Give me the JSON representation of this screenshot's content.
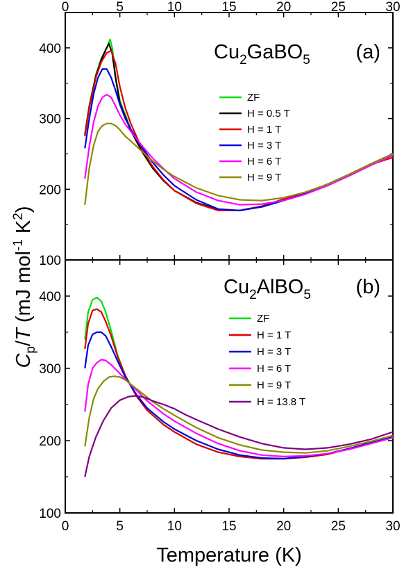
{
  "chart_data": [
    {
      "type": "line",
      "panel": "top",
      "title": "Cu2GaBO5 (a)",
      "title_parts": {
        "base": "Cu",
        "sub1": "2",
        "mid": "GaBO",
        "sub2": "5",
        "tag": "(a)"
      },
      "xlabel": "Temperature (K)",
      "ylabel": "Cp/T (mJ mol-1 K2)",
      "xlim": [
        0,
        30
      ],
      "ylim": [
        100,
        450
      ],
      "xticks": [
        0,
        5,
        10,
        15,
        20,
        25,
        30
      ],
      "yticks": [
        100,
        200,
        300,
        400
      ],
      "xtick_labels": [
        "0",
        "5",
        "10",
        "15",
        "20",
        "25",
        "30"
      ],
      "ytick_labels": [
        "100",
        "200",
        "300",
        "400"
      ],
      "legend_position": "right",
      "series": [
        {
          "name": "ZF",
          "color": "#00e000",
          "x": [
            1.8,
            2.2,
            2.8,
            3.3,
            3.8,
            4.1,
            4.3,
            4.6,
            5.0,
            6,
            7,
            8,
            9,
            10,
            12,
            14,
            16,
            18,
            20,
            22,
            24,
            26,
            28,
            30
          ],
          "y": [
            278,
            318,
            362,
            385,
            400,
            412,
            400,
            360,
            325,
            285,
            255,
            230,
            212,
            198,
            181,
            171,
            170,
            176,
            186,
            195,
            207,
            221,
            236,
            250
          ]
        },
        {
          "name": "H = 0.5 T",
          "color": "#000000",
          "x": [
            1.8,
            2.2,
            2.8,
            3.3,
            3.7,
            4.0,
            4.3,
            4.6,
            5.0,
            6,
            7,
            8,
            9,
            10,
            12,
            14,
            16,
            18,
            20,
            22,
            24,
            26,
            28,
            30
          ],
          "y": [
            277,
            317,
            360,
            383,
            397,
            406,
            392,
            358,
            322,
            283,
            254,
            230,
            212,
            198,
            181,
            171,
            170,
            176,
            186,
            195,
            207,
            221,
            236,
            250
          ]
        },
        {
          "name": "H = 1 T",
          "color": "#e00000",
          "x": [
            1.8,
            2.2,
            2.8,
            3.3,
            3.8,
            4.2,
            4.6,
            5.0,
            5.5,
            6,
            7,
            8,
            9,
            10,
            12,
            14,
            16,
            18,
            20,
            22,
            24,
            26,
            28,
            30
          ],
          "y": [
            275,
            315,
            358,
            380,
            393,
            396,
            378,
            345,
            315,
            293,
            258,
            232,
            213,
            198,
            180,
            170,
            170,
            176,
            186,
            195,
            207,
            220,
            235,
            245
          ]
        },
        {
          "name": "H = 3 T",
          "color": "#0000e0",
          "x": [
            1.8,
            2.2,
            2.6,
            3.0,
            3.4,
            3.8,
            4.2,
            4.6,
            5.0,
            5.5,
            6,
            7,
            8,
            9,
            10,
            12,
            14,
            16,
            18,
            20,
            22,
            24,
            26,
            28,
            30
          ],
          "y": [
            258,
            300,
            335,
            358,
            370,
            370,
            358,
            340,
            320,
            300,
            285,
            260,
            238,
            220,
            205,
            185,
            172,
            170,
            175,
            184,
            194,
            206,
            220,
            235,
            248
          ]
        },
        {
          "name": "H = 6 T",
          "color": "#ff00ff",
          "x": [
            1.8,
            2.2,
            2.6,
            3.0,
            3.4,
            3.8,
            4.2,
            4.6,
            5.0,
            5.5,
            6,
            7,
            8,
            9,
            10,
            12,
            14,
            16,
            18,
            20,
            22,
            24,
            26,
            28,
            30
          ],
          "y": [
            215,
            260,
            295,
            318,
            330,
            334,
            330,
            318,
            305,
            292,
            282,
            262,
            244,
            229,
            215,
            196,
            184,
            178,
            179,
            184,
            193,
            205,
            219,
            234,
            248
          ]
        },
        {
          "name": "H = 9 T",
          "color": "#8b8b00",
          "x": [
            1.8,
            2.2,
            2.6,
            3.0,
            3.4,
            3.8,
            4.2,
            4.6,
            5.0,
            5.5,
            6,
            7,
            8,
            9,
            10,
            12,
            14,
            16,
            18,
            20,
            22,
            24,
            26,
            28,
            30
          ],
          "y": [
            178,
            230,
            262,
            282,
            290,
            293,
            293,
            290,
            284,
            275,
            268,
            254,
            240,
            228,
            218,
            202,
            191,
            185,
            184,
            188,
            196,
            207,
            221,
            236,
            250
          ]
        }
      ]
    },
    {
      "type": "line",
      "panel": "bottom",
      "title": "Cu2AlBO5 (b)",
      "title_parts": {
        "base": "Cu",
        "sub1": "2",
        "mid": "AlBO",
        "sub2": "5",
        "tag": "(b)"
      },
      "xlabel": "Temperature (K)",
      "ylabel": "Cp/T (mJ mol-1 K2)",
      "xlim": [
        0,
        30
      ],
      "ylim": [
        100,
        450
      ],
      "xticks": [
        0,
        5,
        10,
        15,
        20,
        25,
        30
      ],
      "yticks": [
        100,
        200,
        300,
        400
      ],
      "xtick_labels": [
        "0",
        "5",
        "10",
        "15",
        "20",
        "25",
        "30"
      ],
      "ytick_labels": [
        "100",
        "200",
        "300",
        "400"
      ],
      "legend_position": "right",
      "series": [
        {
          "name": "ZF",
          "color": "#00e000",
          "x": [
            1.8,
            2.1,
            2.5,
            2.9,
            3.3,
            3.7,
            4.2,
            4.8,
            5.5,
            6.5,
            7.5,
            9,
            10,
            12,
            14,
            16,
            18,
            20,
            22,
            24,
            26,
            28,
            30
          ],
          "y": [
            340,
            378,
            395,
            398,
            393,
            378,
            352,
            318,
            290,
            262,
            242,
            222,
            212,
            195,
            184,
            178,
            175,
            175,
            177,
            181,
            189,
            197,
            206
          ]
        },
        {
          "name": "H = 1 T",
          "color": "#e00000",
          "x": [
            1.8,
            2.1,
            2.5,
            2.9,
            3.3,
            3.7,
            4.2,
            4.8,
            5.5,
            6.5,
            7.5,
            9,
            10,
            12,
            14,
            16,
            18,
            20,
            22,
            24,
            26,
            28,
            30
          ],
          "y": [
            327,
            362,
            380,
            382,
            378,
            365,
            345,
            316,
            290,
            262,
            242,
            222,
            212,
            195,
            184,
            178,
            175,
            175,
            177,
            181,
            189,
            197,
            206
          ]
        },
        {
          "name": "H = 3 T",
          "color": "#0000e0",
          "x": [
            1.8,
            2.1,
            2.5,
            2.9,
            3.3,
            3.7,
            4.2,
            4.8,
            5.5,
            6.5,
            7.5,
            9,
            10,
            12,
            14,
            16,
            18,
            20,
            22,
            24,
            26,
            28,
            30
          ],
          "y": [
            300,
            332,
            347,
            350,
            350,
            345,
            330,
            310,
            288,
            264,
            245,
            226,
            216,
            200,
            188,
            180,
            176,
            175,
            178,
            182,
            189,
            197,
            205
          ]
        },
        {
          "name": "H = 6 T",
          "color": "#ff00ff",
          "x": [
            1.8,
            2.1,
            2.5,
            2.9,
            3.3,
            3.7,
            4.2,
            4.8,
            5.5,
            6.5,
            7.5,
            9,
            10,
            12,
            14,
            16,
            18,
            20,
            22,
            24,
            26,
            28,
            30
          ],
          "y": [
            240,
            278,
            300,
            308,
            312,
            311,
            305,
            296,
            285,
            270,
            255,
            237,
            227,
            210,
            196,
            186,
            180,
            178,
            179,
            182,
            188,
            196,
            204
          ]
        },
        {
          "name": "H = 9 T",
          "color": "#8b8b00",
          "x": [
            1.8,
            2.2,
            2.6,
            3.0,
            3.5,
            4.0,
            4.5,
            5.0,
            5.5,
            6.0,
            7,
            8,
            9,
            10,
            12,
            14,
            16,
            18,
            20,
            22,
            24,
            26,
            28,
            30
          ],
          "y": [
            192,
            232,
            258,
            272,
            282,
            288,
            289,
            288,
            284,
            278,
            266,
            254,
            244,
            235,
            218,
            204,
            194,
            187,
            184,
            183,
            186,
            192,
            199,
            207
          ]
        },
        {
          "name": "H = 13.8 T",
          "color": "#800080",
          "x": [
            1.8,
            2.2,
            2.8,
            3.5,
            4.2,
            5.0,
            5.8,
            6.5,
            7.2,
            8,
            9,
            10,
            11,
            12,
            14,
            16,
            18,
            20,
            22,
            24,
            26,
            28,
            30
          ],
          "y": [
            150,
            178,
            205,
            228,
            245,
            256,
            261,
            262,
            260,
            255,
            250,
            244,
            236,
            229,
            216,
            205,
            196,
            190,
            188,
            190,
            195,
            202,
            212
          ]
        }
      ]
    }
  ]
}
